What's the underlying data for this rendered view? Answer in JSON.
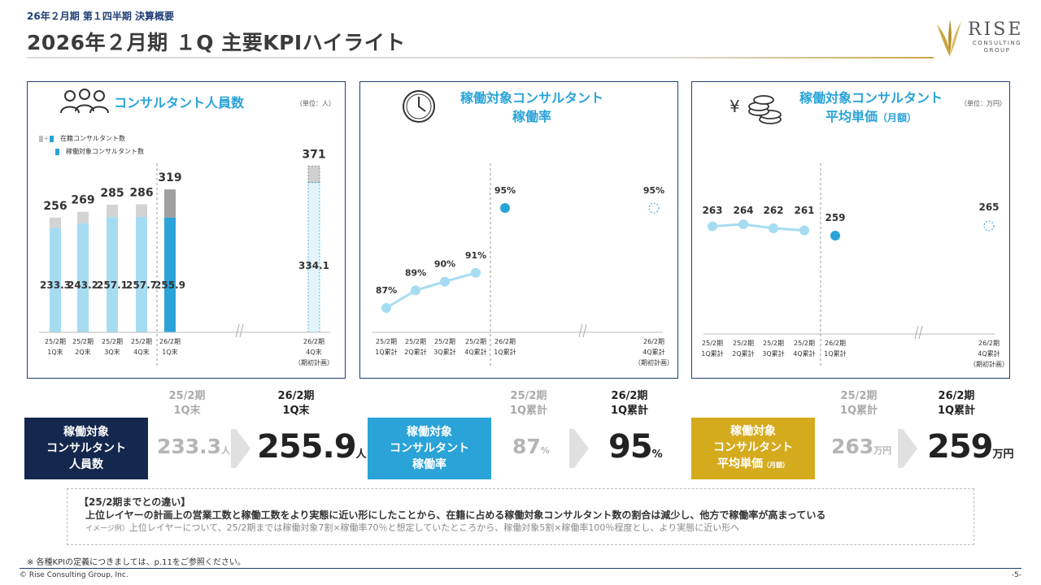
{
  "header": {
    "kicker": "26年２月期 第１四半期 決算概要",
    "title": "2026年２月期 １Q 主要KPIハイライト"
  },
  "logo": {
    "name": "RISE",
    "sub1": "CONSULTING",
    "sub2": "GROUP"
  },
  "colors": {
    "navy": "#14284e",
    "blue": "#29a3d8",
    "light_blue": "#a6dcf2",
    "gold": "#d5ab1e",
    "gray": "#bfbfbf"
  },
  "panels": {
    "headcount": {
      "title": "コンサルタント人員数",
      "unit": "（単位：人）",
      "legend_total": "在籍コンサルタント数",
      "legend_billable": "稼働対象コンサルタント数",
      "legend_plus": "＋"
    },
    "utilization": {
      "title_line1": "稼働対象コンサルタント",
      "title_line2": "稼働率"
    },
    "unit_price": {
      "title_line1": "稼働対象コンサルタント",
      "title_line2": "平均単価",
      "title_suffix": "（月額）",
      "unit": "（単位：万円）",
      "yen_symbol": "¥"
    }
  },
  "chart_data": [
    {
      "type": "bar",
      "title": "コンサルタント人員数",
      "categories": [
        "25/2期 1Q末",
        "25/2期 2Q末",
        "25/2期 3Q末",
        "25/2期 4Q末",
        "26/2期 1Q末",
        "26/2期 4Q末 (期初計画)"
      ],
      "category_lines": [
        [
          "25/2期",
          "1Q末"
        ],
        [
          "25/2期",
          "2Q末"
        ],
        [
          "25/2期",
          "3Q末"
        ],
        [
          "25/2期",
          "4Q末"
        ],
        [
          "26/2期",
          "1Q末"
        ],
        [
          "26/2期",
          "4Q末",
          "（期初計画）"
        ]
      ],
      "series": [
        {
          "name": "在籍コンサルタント数",
          "values": [
            256,
            269,
            285,
            286,
            319,
            371
          ],
          "labels": [
            "256",
            "269",
            "285",
            "286",
            "319",
            "371"
          ]
        },
        {
          "name": "稼働対象コンサルタント数",
          "values": [
            233.3,
            243.2,
            257.1,
            257.7,
            255.9,
            334.1
          ],
          "labels": [
            "233.3",
            "243.2",
            "257.1",
            "257.7",
            "255.9",
            "334.1"
          ]
        }
      ],
      "ylim": [
        0,
        390
      ]
    },
    {
      "type": "line",
      "title": "稼働対象コンサルタント稼働率",
      "categories": [
        "25/2期 1Q累計",
        "25/2期 2Q累計",
        "25/2期 3Q累計",
        "25/2期 4Q累計",
        "26/2期 1Q累計",
        "26/2期 4Q累計 (期初計画)"
      ],
      "category_lines": [
        [
          "25/2期",
          "1Q累計"
        ],
        [
          "25/2期",
          "2Q累計"
        ],
        [
          "25/2期",
          "3Q累計"
        ],
        [
          "25/2期",
          "4Q累計"
        ],
        [
          "26/2期",
          "1Q累計"
        ],
        [
          "26/2期",
          "4Q累計",
          "（期初計画）"
        ]
      ],
      "values": [
        87,
        89,
        90,
        91,
        95,
        95
      ],
      "labels": [
        "87%",
        "89%",
        "90%",
        "91%",
        "95%",
        "95%"
      ],
      "ylim": [
        80,
        98
      ]
    },
    {
      "type": "line",
      "title": "稼働対象コンサルタント平均単価（月額）",
      "categories": [
        "25/2期 1Q累計",
        "25/2期 2Q累計",
        "25/2期 3Q累計",
        "25/2期 4Q累計",
        "26/2期 1Q累計",
        "26/2期 4Q累計 (期初計画)"
      ],
      "category_lines": [
        [
          "25/2期",
          "1Q累計"
        ],
        [
          "25/2期",
          "2Q累計"
        ],
        [
          "25/2期",
          "3Q累計"
        ],
        [
          "25/2期",
          "4Q累計"
        ],
        [
          "26/2期",
          "1Q累計"
        ],
        [
          "26/2期",
          "4Q累計",
          "（期初計画）"
        ]
      ],
      "values": [
        263,
        264,
        262,
        261,
        259,
        265
      ],
      "labels": [
        "263",
        "264",
        "262",
        "261",
        "259",
        "265"
      ],
      "ylim": [
        200,
        300
      ]
    }
  ],
  "kpis": [
    {
      "label_lines": [
        "稼働対象",
        "コンサルタント",
        "人員数"
      ],
      "prev_period": [
        "25/2期",
        "1Q末"
      ],
      "curr_period": [
        "26/2期",
        "1Q末"
      ],
      "prev_value": "233.3",
      "curr_value": "255.9",
      "unit": "人"
    },
    {
      "label_lines": [
        "稼働対象",
        "コンサルタント",
        "稼働率"
      ],
      "prev_period": [
        "25/2期",
        "1Q累計"
      ],
      "curr_period": [
        "26/2期",
        "1Q累計"
      ],
      "prev_value": "87",
      "curr_value": "95",
      "unit": "%"
    },
    {
      "label_lines": [
        "稼働対象",
        "コンサルタント",
        "平均単価"
      ],
      "label_suffix": "（月額）",
      "prev_period": [
        "25/2期",
        "1Q累計"
      ],
      "curr_period": [
        "26/2期",
        "1Q累計"
      ],
      "prev_value": "263",
      "curr_value": "259",
      "unit": "万円"
    }
  ],
  "difference": {
    "heading": "【25/2期までとの違い】",
    "line1": "上位レイヤーの計画上の営業工数と稼働工数をより実態に近い形にしたことから、在籍に占める稼働対象コンサルタント数の割合は減少し、他方で稼働率が高まっている",
    "line2_prefix": "イメージ例）",
    "line2": "上位レイヤーについて、25/2期までは稼働対象7割×稼働率70％と想定していたところから、稼働対象5割×稼働率100％程度とし、より実態に近い形へ"
  },
  "footer": {
    "note": "※ 各種KPIの定義につきましては、p.11をご参照ください。",
    "copyright": "© Rise Consulting Group, Inc.",
    "page": "-5-"
  }
}
